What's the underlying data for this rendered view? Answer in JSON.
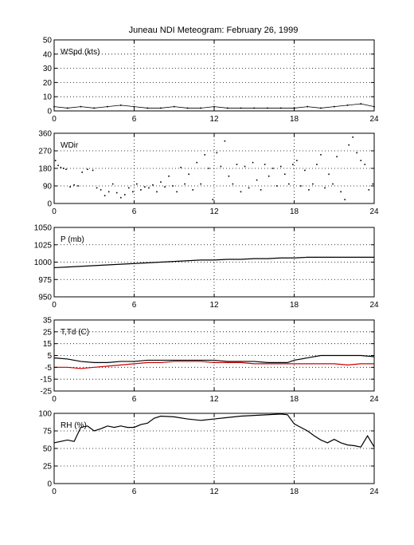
{
  "title": "Juneau NDI Meteogram:  February 26, 1999",
  "chart_data": [
    {
      "type": "scatter",
      "label": "WSpd (kts)",
      "xlim": [
        0,
        24
      ],
      "xticks": [
        "0",
        "6",
        "12",
        "18",
        "24"
      ],
      "ylim": [
        0,
        50
      ],
      "yticks": [
        "0",
        "10",
        "20",
        "30",
        "40",
        "50"
      ],
      "grid": true,
      "series": [
        {
          "color": "#000000",
          "x": [
            0,
            1,
            2,
            3,
            4,
            5,
            6,
            7,
            8,
            9,
            10,
            11,
            12,
            13,
            14,
            15,
            16,
            17,
            18,
            19,
            20,
            21,
            22,
            23,
            24
          ],
          "y": [
            3,
            2,
            3,
            2,
            3,
            4,
            3,
            2,
            2,
            3,
            2,
            2,
            3,
            2,
            2,
            2,
            2,
            2,
            2,
            3,
            2,
            3,
            4,
            5,
            3
          ]
        }
      ]
    },
    {
      "type": "scatter",
      "label": "WDir",
      "xlim": [
        0,
        24
      ],
      "xticks": [
        "0",
        "6",
        "12",
        "18",
        "24"
      ],
      "ylim": [
        0,
        360
      ],
      "yticks": [
        "0",
        "90",
        "180",
        "270",
        "360"
      ],
      "grid": true,
      "series": [
        {
          "color": "#000000",
          "x": [
            0.1,
            0.3,
            0.5,
            0.7,
            0.9,
            1.2,
            1.5,
            1.8,
            2.1,
            2.5,
            2.9,
            3.2,
            3.5,
            3.8,
            4.1,
            4.4,
            4.7,
            5.0,
            5.3,
            5.6,
            5.9,
            6.2,
            6.5,
            6.8,
            7.1,
            7.4,
            7.7,
            8.0,
            8.3,
            8.6,
            8.9,
            9.2,
            9.5,
            9.8,
            10.1,
            10.4,
            10.7,
            11.0,
            11.3,
            11.6,
            11.9,
            12.2,
            12.5,
            12.8,
            13.1,
            13.4,
            13.7,
            14.0,
            14.3,
            14.6,
            14.9,
            15.2,
            15.5,
            15.8,
            16.1,
            16.4,
            16.7,
            17.0,
            17.3,
            17.6,
            17.9,
            18.2,
            18.5,
            18.8,
            19.1,
            19.4,
            19.7,
            20.0,
            20.3,
            20.6,
            20.9,
            21.2,
            21.5,
            21.8,
            22.1,
            22.4,
            22.7,
            23.0,
            23.3,
            23.6,
            23.9
          ],
          "y": [
            220,
            195,
            185,
            180,
            175,
            85,
            95,
            90,
            160,
            175,
            170,
            80,
            70,
            40,
            60,
            100,
            55,
            30,
            45,
            80,
            60,
            100,
            70,
            85,
            80,
            95,
            60,
            110,
            85,
            140,
            90,
            60,
            185,
            100,
            150,
            70,
            210,
            100,
            250,
            180,
            20,
            260,
            190,
            320,
            140,
            100,
            200,
            60,
            190,
            80,
            210,
            120,
            70,
            200,
            140,
            180,
            90,
            190,
            150,
            100,
            200,
            220,
            90,
            170,
            70,
            100,
            200,
            250,
            80,
            150,
            100,
            240,
            60,
            20,
            300,
            340,
            260,
            220,
            200,
            70,
            100
          ]
        }
      ]
    },
    {
      "type": "line",
      "label": "P (mb)",
      "xlim": [
        0,
        24
      ],
      "xticks": [
        "0",
        "6",
        "12",
        "18",
        "24"
      ],
      "ylim": [
        950,
        1050
      ],
      "yticks": [
        "950",
        "975",
        "1000",
        "1025",
        "1050"
      ],
      "grid": true,
      "series": [
        {
          "color": "#000000",
          "x": [
            0,
            1,
            2,
            3,
            4,
            5,
            6,
            7,
            8,
            9,
            10,
            11,
            12,
            13,
            14,
            15,
            16,
            17,
            18,
            19,
            20,
            21,
            22,
            23,
            24
          ],
          "y": [
            992,
            993,
            994,
            995,
            996,
            997,
            998,
            999,
            1000,
            1001,
            1002,
            1003,
            1003,
            1004,
            1004,
            1005,
            1005,
            1006,
            1006,
            1007,
            1007,
            1007,
            1007,
            1007,
            1007
          ]
        }
      ]
    },
    {
      "type": "line",
      "label": "T,Td (C)",
      "xlim": [
        0,
        24
      ],
      "xticks": [
        "0",
        "6",
        "12",
        "18",
        "24"
      ],
      "ylim": [
        -25,
        35
      ],
      "yticks": [
        "-25",
        "-15",
        "-5",
        "5",
        "15",
        "25",
        "35"
      ],
      "grid": true,
      "series": [
        {
          "color": "#000000",
          "x": [
            0,
            1,
            2,
            3,
            4,
            5,
            6,
            7,
            8,
            9,
            10,
            11,
            12,
            13,
            14,
            15,
            16,
            17,
            17.5,
            18,
            19,
            20,
            21,
            22,
            23,
            24
          ],
          "y": [
            3,
            2,
            0,
            -1,
            -1,
            0,
            0,
            1,
            1,
            1,
            1,
            1,
            1,
            0,
            0,
            0,
            -1,
            -1,
            -1,
            1,
            3,
            5,
            5,
            5,
            5,
            4
          ]
        },
        {
          "color": "#cc0000",
          "x": [
            0,
            1,
            2,
            3,
            4,
            5,
            6,
            7,
            8,
            9,
            10,
            11,
            12,
            13,
            14,
            15,
            16,
            17,
            18,
            19,
            20,
            21,
            22,
            23,
            24
          ],
          "y": [
            -5,
            -5,
            -6,
            -5,
            -4,
            -3,
            -2,
            -1,
            -1,
            0,
            0,
            0,
            -1,
            -1,
            -1,
            -2,
            -2,
            -2,
            -2,
            -2,
            -2,
            -2,
            -3,
            -2,
            -2
          ]
        }
      ]
    },
    {
      "type": "line",
      "label": "RH (%)",
      "xlim": [
        0,
        24
      ],
      "xticks": [
        "0",
        "6",
        "12",
        "18",
        "24"
      ],
      "ylim": [
        0,
        100
      ],
      "yticks": [
        "0",
        "25",
        "50",
        "75",
        "100"
      ],
      "grid": true,
      "series": [
        {
          "color": "#000000",
          "x": [
            0,
            0.5,
            1,
            1.5,
            2,
            2.5,
            3,
            3.5,
            4,
            4.5,
            5,
            5.5,
            6,
            6.5,
            7,
            7.5,
            8,
            9,
            10,
            11,
            12,
            13,
            14,
            15,
            16,
            17,
            17.5,
            18,
            18.5,
            19,
            19.5,
            20,
            20.5,
            21,
            21.5,
            22,
            22.5,
            23,
            23.5,
            24
          ],
          "y": [
            58,
            60,
            62,
            60,
            80,
            82,
            75,
            78,
            82,
            80,
            82,
            80,
            80,
            84,
            86,
            93,
            96,
            95,
            92,
            90,
            92,
            94,
            96,
            97,
            98,
            99,
            98,
            85,
            80,
            75,
            68,
            62,
            58,
            63,
            58,
            55,
            54,
            52,
            68,
            52
          ]
        }
      ]
    }
  ]
}
